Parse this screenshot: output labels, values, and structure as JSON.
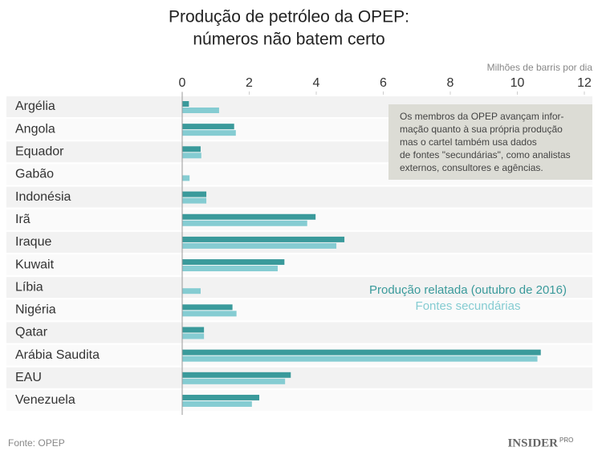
{
  "chart_data": {
    "type": "bar",
    "orientation": "horizontal",
    "title": [
      "Produção de petróleo da OPEP:",
      "números não batem certo"
    ],
    "x_label": "Milhões de barris por dia",
    "categories": [
      "Argélia",
      "Angola",
      "Equador",
      "Gabão",
      "Indonésia",
      "Irã",
      "Iraque",
      "Kuwait",
      "Líbia",
      "Nigéria",
      "Qatar",
      "Arábia Saudita",
      "EAU",
      "Venezuela"
    ],
    "series": [
      {
        "name": "Produção relatada (outubro de 2016)",
        "color": "#3a9a9b",
        "values": [
          0.2,
          1.55,
          0.55,
          null,
          0.72,
          3.98,
          4.84,
          3.05,
          null,
          1.5,
          0.65,
          10.7,
          3.24,
          2.3
        ]
      },
      {
        "name": "Fontes secundárias",
        "color": "#85ccd2",
        "values": [
          1.1,
          1.6,
          0.57,
          0.22,
          0.72,
          3.73,
          4.6,
          2.85,
          0.55,
          1.62,
          0.65,
          10.6,
          3.07,
          2.08
        ]
      }
    ],
    "xlim": [
      0,
      12
    ],
    "xticks": [
      0,
      2,
      4,
      6,
      8,
      10,
      12
    ],
    "grid": false,
    "annotation": [
      "Os membros da OPEP avançam infor-",
      "mação quanto à sua própria produção",
      "mas o cartel também usa dados",
      "de fontes \"secundárias\", como analistas",
      "externos, consultores e agências."
    ],
    "source": "Fonte: OPEP",
    "logo": {
      "name": "INSIDER",
      "suffix": "PRO"
    }
  }
}
